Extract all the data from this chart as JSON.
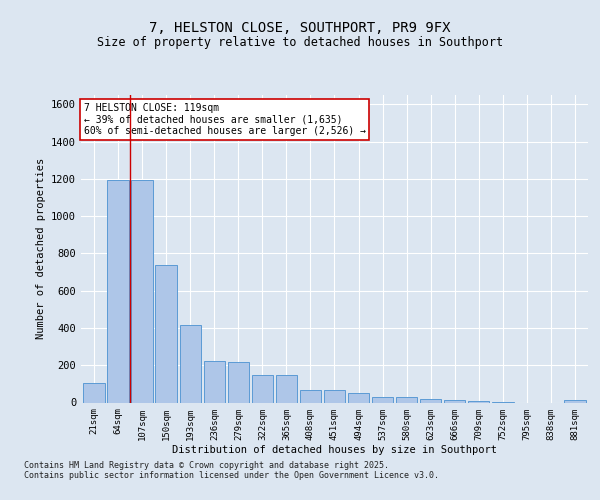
{
  "title_line1": "7, HELSTON CLOSE, SOUTHPORT, PR9 9FX",
  "title_line2": "Size of property relative to detached houses in Southport",
  "xlabel": "Distribution of detached houses by size in Southport",
  "ylabel": "Number of detached properties",
  "categories": [
    "21sqm",
    "64sqm",
    "107sqm",
    "150sqm",
    "193sqm",
    "236sqm",
    "279sqm",
    "322sqm",
    "365sqm",
    "408sqm",
    "451sqm",
    "494sqm",
    "537sqm",
    "580sqm",
    "623sqm",
    "666sqm",
    "709sqm",
    "752sqm",
    "795sqm",
    "838sqm",
    "881sqm"
  ],
  "values": [
    105,
    1195,
    1195,
    740,
    415,
    225,
    220,
    150,
    150,
    68,
    65,
    50,
    32,
    30,
    18,
    14,
    10,
    3,
    0,
    0,
    15
  ],
  "bar_color": "#aec6e8",
  "bar_edge_color": "#5b9bd5",
  "vline_x": 1.5,
  "vline_color": "#cc0000",
  "annotation_text": "7 HELSTON CLOSE: 119sqm\n← 39% of detached houses are smaller (1,635)\n60% of semi-detached houses are larger (2,526) →",
  "annotation_box_color": "#ffffff",
  "annotation_box_edge": "#cc0000",
  "ylim": [
    0,
    1650
  ],
  "yticks": [
    0,
    200,
    400,
    600,
    800,
    1000,
    1200,
    1400,
    1600
  ],
  "background_color": "#dce6f1",
  "plot_bg_color": "#dce6f1",
  "grid_color": "#ffffff",
  "footer_line1": "Contains HM Land Registry data © Crown copyright and database right 2025.",
  "footer_line2": "Contains public sector information licensed under the Open Government Licence v3.0."
}
